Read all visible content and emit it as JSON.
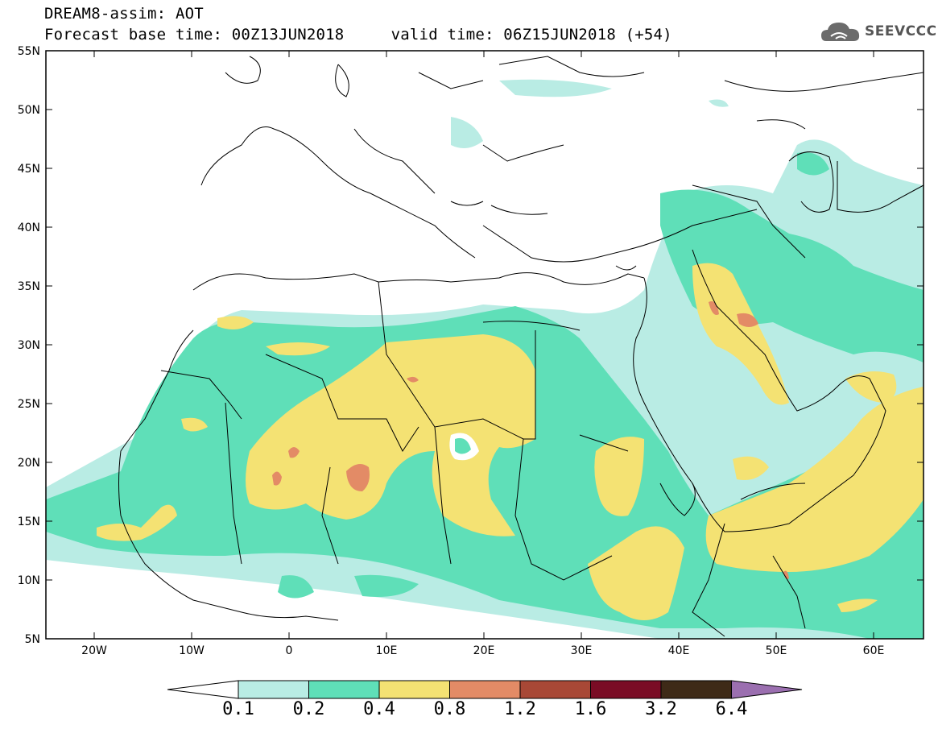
{
  "header": {
    "line1": "DREAM8-assim: AOT",
    "line2": "Forecast base time: 00Z13JUN2018     valid time: 06Z15JUN2018 (+54)"
  },
  "logo": {
    "text": "SEEVCCC",
    "icon": "cloud-icon"
  },
  "map": {
    "lat_labels": [
      "55N",
      "50N",
      "45N",
      "40N",
      "35N",
      "30N",
      "25N",
      "20N",
      "15N",
      "10N",
      "5N"
    ],
    "lon_labels": [
      "20W",
      "10W",
      "0",
      "10E",
      "20E",
      "30E",
      "40E",
      "50E",
      "60E"
    ],
    "lat_range": [
      5,
      55
    ],
    "lon_range": [
      -25,
      65
    ]
  },
  "legend": {
    "labels": [
      "0.1",
      "0.2",
      "0.4",
      "0.8",
      "1.2",
      "1.6",
      "3.2",
      "6.4"
    ],
    "colors": [
      "#ffffff",
      "#b9ece4",
      "#5fdfb8",
      "#f4e273",
      "#e38b66",
      "#a84836",
      "#7a0c25",
      "#3e2a17",
      "#9b6fb0"
    ]
  }
}
